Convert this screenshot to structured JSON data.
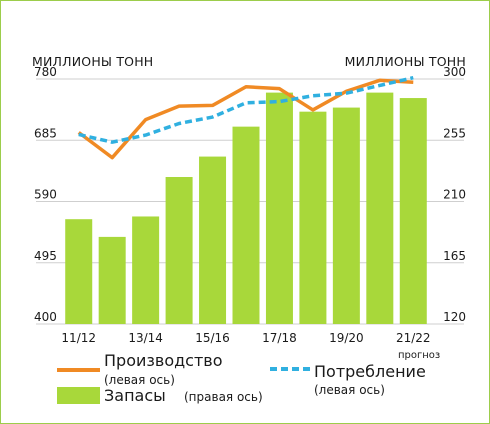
{
  "chart_data": {
    "type": "bar+line",
    "left_axis_title": "МИЛЛИОНЫ ТОНН",
    "right_axis_title": "МИЛЛИОНЫ ТОНН",
    "left_ylim": [
      400,
      780
    ],
    "right_ylim": [
      120,
      300
    ],
    "left_ticks": [
      "400",
      "495",
      "590",
      "685",
      "780"
    ],
    "right_ticks": [
      "120",
      "165",
      "210",
      "255",
      "300"
    ],
    "categories": [
      "11/12",
      "12/13",
      "13/14",
      "14/15",
      "15/16",
      "16/17",
      "17/18",
      "18/19",
      "19/20",
      "20/21",
      "21/22"
    ],
    "x_labels": [
      {
        "index": 0,
        "text": "11/12"
      },
      {
        "index": 2,
        "text": "13/14"
      },
      {
        "index": 4,
        "text": "15/16"
      },
      {
        "index": 6,
        "text": "17/18"
      },
      {
        "index": 8,
        "text": "19/20"
      },
      {
        "index": 10,
        "text": "21/22"
      }
    ],
    "forecast_note": "прогноз",
    "series": [
      {
        "name": "Запасы",
        "axis": "right",
        "type": "bar",
        "color": "#a8d83a",
        "values": [
          197,
          184,
          199,
          228,
          243,
          265,
          290,
          276,
          279,
          290,
          286
        ]
      },
      {
        "name": "Производство",
        "axis": "left",
        "type": "line",
        "color": "#f08a24",
        "values": [
          697,
          658,
          717,
          738,
          739,
          768,
          765,
          732,
          761,
          778,
          775
        ]
      },
      {
        "name": "Потребление",
        "axis": "left",
        "type": "dashed-line",
        "color": "#30b0e0",
        "values": [
          694,
          682,
          693,
          711,
          721,
          743,
          745,
          754,
          758,
          770,
          782
        ]
      }
    ]
  },
  "legend": {
    "production": {
      "label": "Производство",
      "sub": "(левая ось)",
      "color": "#f08a24"
    },
    "consumption": {
      "label": "Потребление",
      "sub": "(левая ось)",
      "color": "#30b0e0"
    },
    "stocks": {
      "label": "Запасы",
      "sub": "(правая ось)",
      "color": "#a8d83a"
    }
  }
}
